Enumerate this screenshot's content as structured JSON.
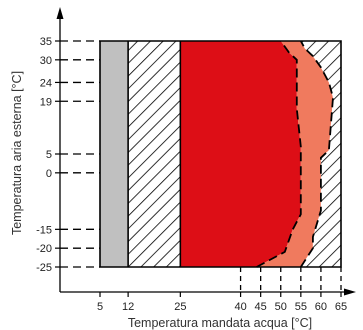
{
  "chart_data": {
    "type": "area",
    "xlabel": "Temperatura mandata acqua [°C]",
    "ylabel": "Temperatura aria esterna [°C]",
    "x_ticks": [
      5,
      12,
      25,
      40,
      45,
      50,
      55,
      60,
      65
    ],
    "y_ticks": [
      -25,
      -20,
      -15,
      0,
      5,
      19,
      24,
      30,
      35
    ],
    "xlim": [
      5,
      65
    ],
    "ylim": [
      -25,
      35
    ],
    "grid": false,
    "regions": [
      {
        "fill": "solid-gray",
        "color": "#c0c0c0",
        "polygon": [
          [
            5,
            -25
          ],
          [
            12,
            -25
          ],
          [
            12,
            35
          ],
          [
            5,
            35
          ]
        ]
      },
      {
        "fill": "hatched",
        "color": "#000000",
        "polygon": [
          [
            12,
            -25
          ],
          [
            25,
            -25
          ],
          [
            25,
            35
          ],
          [
            12,
            35
          ]
        ]
      },
      {
        "fill": "solid-red",
        "color": "#dd0e16",
        "polygon": [
          [
            25,
            -25
          ],
          [
            44,
            -25
          ],
          [
            51,
            -21
          ],
          [
            53,
            -15
          ],
          [
            55,
            -11
          ],
          [
            55,
            7
          ],
          [
            54,
            17
          ],
          [
            54,
            30
          ],
          [
            52,
            32
          ],
          [
            50,
            35
          ],
          [
            25,
            35
          ]
        ]
      },
      {
        "fill": "solid-salmon",
        "color": "#f07a5e",
        "polygon": [
          [
            44,
            -25
          ],
          [
            55,
            -25
          ],
          [
            58,
            -20
          ],
          [
            58,
            -17
          ],
          [
            60,
            -10
          ],
          [
            60,
            4
          ],
          [
            62,
            6
          ],
          [
            63,
            20
          ],
          [
            62,
            24
          ],
          [
            60,
            28
          ],
          [
            58,
            31
          ],
          [
            56,
            33
          ],
          [
            55,
            35
          ],
          [
            50,
            35
          ],
          [
            52,
            32
          ],
          [
            54,
            30
          ],
          [
            54,
            17
          ],
          [
            55,
            7
          ],
          [
            55,
            -11
          ],
          [
            53,
            -15
          ],
          [
            51,
            -21
          ]
        ]
      },
      {
        "fill": "hatched",
        "color": "#000000",
        "polygon": [
          [
            55,
            -25
          ],
          [
            65,
            -25
          ],
          [
            65,
            35
          ],
          [
            55,
            35
          ],
          [
            56,
            33
          ],
          [
            58,
            31
          ],
          [
            60,
            28
          ],
          [
            62,
            24
          ],
          [
            63,
            20
          ],
          [
            62,
            6
          ],
          [
            60,
            4
          ],
          [
            60,
            -10
          ],
          [
            58,
            -17
          ],
          [
            58,
            -20
          ]
        ]
      }
    ],
    "boundaries": [
      {
        "style": "dashed",
        "points": [
          [
            44,
            -25
          ],
          [
            51,
            -21
          ],
          [
            53,
            -15
          ],
          [
            55,
            -11
          ],
          [
            55,
            7
          ],
          [
            54,
            17
          ],
          [
            54,
            30
          ],
          [
            52,
            32
          ],
          [
            50,
            35
          ]
        ]
      },
      {
        "style": "dashed",
        "points": [
          [
            55,
            -25
          ],
          [
            58,
            -20
          ],
          [
            58,
            -17
          ],
          [
            60,
            -10
          ],
          [
            60,
            4
          ],
          [
            62,
            6
          ],
          [
            63,
            20
          ],
          [
            62,
            24
          ],
          [
            60,
            28
          ],
          [
            58,
            31
          ],
          [
            56,
            33
          ],
          [
            55,
            35
          ]
        ]
      }
    ],
    "reference_lines": [
      {
        "axis": "y",
        "style": "dashed",
        "values": [
          -25,
          -20,
          -15,
          0,
          5,
          19,
          24,
          30,
          35
        ]
      },
      {
        "axis": "x",
        "style": "dashed",
        "values": [
          40,
          45,
          50,
          55,
          60,
          65
        ]
      }
    ]
  }
}
